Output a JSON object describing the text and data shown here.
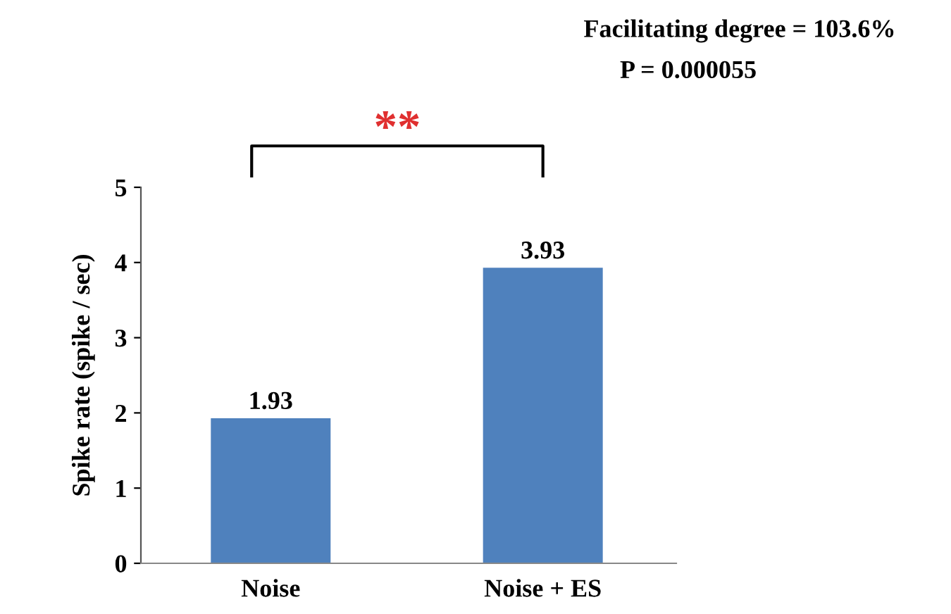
{
  "chart_data": {
    "type": "bar",
    "ylabel": "Spike rate (spike / sec)",
    "categories": [
      "Noise",
      "Noise + ES"
    ],
    "values": [
      1.93,
      3.93
    ],
    "color": "#4f81bd",
    "data_labels": true,
    "ylim": [
      0,
      5
    ],
    "yticks": [
      0,
      1,
      2,
      3,
      4,
      5
    ],
    "grid": false,
    "annotations": [
      "Facilitating degree = 103.6%",
      "P = 0.000055",
      "**"
    ]
  }
}
